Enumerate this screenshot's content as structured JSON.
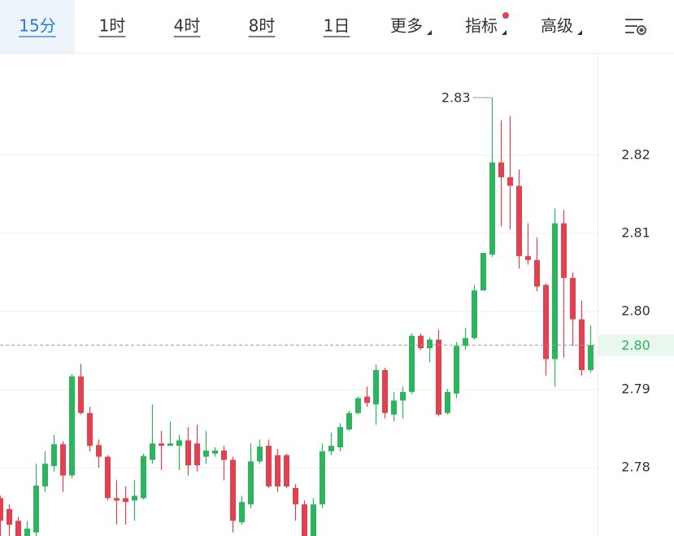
{
  "tabs": [
    "15分",
    "1时",
    "4时",
    "8时",
    "1日",
    "更多",
    "指标",
    "高级"
  ],
  "chart_data": {
    "type": "candlestick",
    "up_color": "#2db55d",
    "down_color": "#e2424f",
    "ylim": [
      2.77125,
      2.83313
    ],
    "yticks": [
      {
        "value": 2.78,
        "label": "2.78"
      },
      2.79,
      {
        "value": 2.8,
        "label": "2.80"
      },
      2.81,
      2.82
    ],
    "grid": true,
    "open": [
      2.7761,
      2.7747,
      2.7732,
      2.7712,
      2.7717,
      2.7776,
      2.7802,
      2.783,
      2.779,
      2.7917,
      2.787,
      2.7829,
      2.7814,
      2.7761,
      2.7761,
      2.7758,
      2.7761,
      2.781,
      2.7831,
      2.7828,
      2.7828,
      2.7835,
      2.7831,
      2.7814,
      2.7818,
      2.7822,
      2.781,
      2.773,
      2.7753,
      2.7808,
      2.7828,
      2.7816,
      2.7816,
      2.7774,
      2.7753,
      2.7712,
      2.7753,
      2.7821,
      2.7826,
      2.7849,
      2.787,
      2.7891,
      2.7881,
      2.7925,
      2.7868,
      2.7886,
      2.7897,
      2.7969,
      2.7953,
      2.7964,
      2.787,
      2.7895,
      2.7956,
      2.7966,
      2.8027,
      2.8073,
      2.8191,
      2.8172,
      2.8161,
      2.8071,
      2.8066,
      2.8034,
      2.7939,
      2.8113,
      2.8043,
      2.799,
      2.7925
    ],
    "high": [
      2.7764,
      2.7753,
      2.7737,
      2.7732,
      2.7805,
      2.7821,
      2.7842,
      2.7834,
      2.792,
      2.7933,
      2.7878,
      2.7836,
      2.7816,
      2.7784,
      2.7776,
      2.7784,
      2.7818,
      2.7881,
      2.7847,
      2.7859,
      2.7842,
      2.7852,
      2.7855,
      2.7847,
      2.7826,
      2.7828,
      2.7814,
      2.7764,
      2.7831,
      2.7836,
      2.7836,
      2.7824,
      2.7818,
      2.7779,
      2.7758,
      2.7761,
      2.7831,
      2.7845,
      2.7857,
      2.7873,
      2.7891,
      2.7904,
      2.7932,
      2.7928,
      2.7897,
      2.7904,
      2.7972,
      2.7972,
      2.7967,
      2.7977,
      2.7901,
      2.7961,
      2.7979,
      2.8034,
      2.8075,
      2.8274,
      2.8245,
      2.825,
      2.8182,
      2.8113,
      2.8095,
      2.8036,
      2.8132,
      2.813,
      2.805,
      2.8014,
      2.7982
    ],
    "low": [
      2.7712,
      2.7712,
      2.7712,
      2.7712,
      2.7712,
      2.7769,
      2.7795,
      2.7769,
      2.7786,
      2.7868,
      2.7821,
      2.78,
      2.7758,
      2.7727,
      2.7727,
      2.7732,
      2.7759,
      2.7805,
      2.7797,
      2.7828,
      2.7797,
      2.779,
      2.7795,
      2.7805,
      2.7814,
      2.7784,
      2.7717,
      2.7727,
      2.7748,
      2.7805,
      2.7774,
      2.7769,
      2.7774,
      2.7732,
      2.7712,
      2.7712,
      2.7748,
      2.7816,
      2.7821,
      2.7847,
      2.7868,
      2.7878,
      2.7855,
      2.7863,
      2.7859,
      2.7863,
      2.7894,
      2.7951,
      2.7935,
      2.7866,
      2.7868,
      2.7889,
      2.7951,
      2.7964,
      2.8027,
      2.807,
      2.8109,
      2.8105,
      2.8055,
      2.806,
      2.8026,
      2.7918,
      2.7904,
      2.7941,
      2.7956,
      2.7918,
      2.7922
    ],
    "close": [
      2.7732,
      2.7727,
      2.7712,
      2.7722,
      2.7777,
      2.7805,
      2.783,
      2.779,
      2.7917,
      2.787,
      2.7828,
      2.7814,
      2.7761,
      2.7758,
      2.7756,
      2.7764,
      2.7815,
      2.7831,
      2.7828,
      2.7831,
      2.7835,
      2.7803,
      2.7803,
      2.7822,
      2.7822,
      2.781,
      2.7732,
      2.7756,
      2.7808,
      2.7827,
      2.7776,
      2.7776,
      2.7776,
      2.7753,
      2.7712,
      2.7753,
      2.7821,
      2.7828,
      2.7852,
      2.787,
      2.7889,
      2.7883,
      2.7925,
      2.787,
      2.7886,
      2.7897,
      2.7969,
      2.7953,
      2.7964,
      2.7868,
      2.7897,
      2.7956,
      2.7966,
      2.8027,
      2.8075,
      2.8191,
      2.8172,
      2.8161,
      2.8071,
      2.8066,
      2.8032,
      2.7939,
      2.8113,
      2.8043,
      2.799,
      2.7925,
      2.7957
    ],
    "last_price": 2.7957,
    "last_price_label": "2.80",
    "high_label": "2.83"
  }
}
